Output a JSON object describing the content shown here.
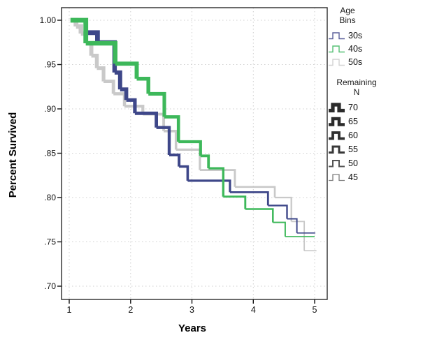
{
  "chart_data": {
    "type": "line",
    "subtype": "kaplan-meier-step",
    "title": "",
    "xlabel": "Years",
    "ylabel": "Percent Survived",
    "x_ticks": [
      1,
      2,
      3,
      4,
      5
    ],
    "y_ticks": [
      {
        "v": 1.0,
        "label": "1.00"
      },
      {
        "v": 0.95,
        "label": ".95"
      },
      {
        "v": 0.9,
        "label": ".90"
      },
      {
        "v": 0.85,
        "label": ".85"
      },
      {
        "v": 0.8,
        "label": ".80"
      },
      {
        "v": 0.75,
        "label": ".75"
      },
      {
        "v": 0.7,
        "label": ".70"
      }
    ],
    "xlim": [
      0.87,
      5.22
    ],
    "ylim": [
      0.685,
      1.014
    ],
    "grid": {
      "style": "dashed",
      "color": "#cfcfcf"
    },
    "frame_color": "#2a2a2a",
    "series": [
      {
        "name": "30s",
        "color": "#3e4789",
        "width_start": 6.8,
        "width_end": 1.6,
        "end": 5.01,
        "steps": [
          [
            1.3,
            0.986
          ],
          [
            1.46,
            0.975
          ],
          [
            1.74,
            0.941
          ],
          [
            1.83,
            0.922
          ],
          [
            1.93,
            0.91
          ],
          [
            2.07,
            0.895
          ],
          [
            2.42,
            0.879
          ],
          [
            2.63,
            0.848
          ],
          [
            2.79,
            0.835
          ],
          [
            2.93,
            0.819
          ],
          [
            3.62,
            0.806
          ],
          [
            4.24,
            0.791
          ],
          [
            4.55,
            0.776
          ],
          [
            4.71,
            0.76
          ]
        ]
      },
      {
        "name": "40s",
        "color": "#3db85a",
        "width_start": 6.8,
        "width_end": 1.6,
        "end": 5.0,
        "steps": [
          [
            1.02,
            1.0
          ],
          [
            1.27,
            0.974
          ],
          [
            1.75,
            0.951
          ],
          [
            2.1,
            0.934
          ],
          [
            2.29,
            0.917
          ],
          [
            2.55,
            0.891
          ],
          [
            2.78,
            0.863
          ],
          [
            3.14,
            0.847
          ],
          [
            3.27,
            0.833
          ],
          [
            3.51,
            0.801
          ],
          [
            3.87,
            0.787
          ],
          [
            4.32,
            0.772
          ],
          [
            4.52,
            0.756
          ]
        ]
      },
      {
        "name": "50s",
        "color": "#c9c9c9",
        "width_start": 6.8,
        "width_end": 1.6,
        "end": 5.03,
        "steps": [
          [
            1.02,
            1.0
          ],
          [
            1.11,
            0.993
          ],
          [
            1.19,
            0.985
          ],
          [
            1.27,
            0.974
          ],
          [
            1.36,
            0.96
          ],
          [
            1.45,
            0.946
          ],
          [
            1.56,
            0.931
          ],
          [
            1.72,
            0.917
          ],
          [
            1.9,
            0.903
          ],
          [
            2.2,
            0.894
          ],
          [
            2.54,
            0.875
          ],
          [
            2.74,
            0.854
          ],
          [
            3.13,
            0.831
          ],
          [
            3.7,
            0.812
          ],
          [
            4.35,
            0.8
          ],
          [
            4.62,
            0.773
          ],
          [
            4.83,
            0.74
          ]
        ]
      }
    ],
    "legend": {
      "age": {
        "title_lines": [
          "Age",
          "Bins"
        ],
        "items": [
          {
            "label": "30s",
            "color": "#5c619b",
            "stroke_width": 1.4
          },
          {
            "label": "40s",
            "color": "#57c075",
            "stroke_width": 1.4
          },
          {
            "label": "50s",
            "color": "#d2d2d2",
            "stroke_width": 1.4
          }
        ]
      },
      "remaining": {
        "title_lines": [
          "Remaining",
          "N"
        ],
        "items": [
          {
            "label": "70",
            "color": "#2b2b2b",
            "stroke_width": 5.2
          },
          {
            "label": "65",
            "color": "#2b2b2b",
            "stroke_width": 4.5
          },
          {
            "label": "60",
            "color": "#303030",
            "stroke_width": 3.8
          },
          {
            "label": "55",
            "color": "#383838",
            "stroke_width": 3.0
          },
          {
            "label": "50",
            "color": "#555555",
            "stroke_width": 2.0
          },
          {
            "label": "45",
            "color": "#7d7d7d",
            "stroke_width": 1.3
          }
        ]
      }
    }
  }
}
